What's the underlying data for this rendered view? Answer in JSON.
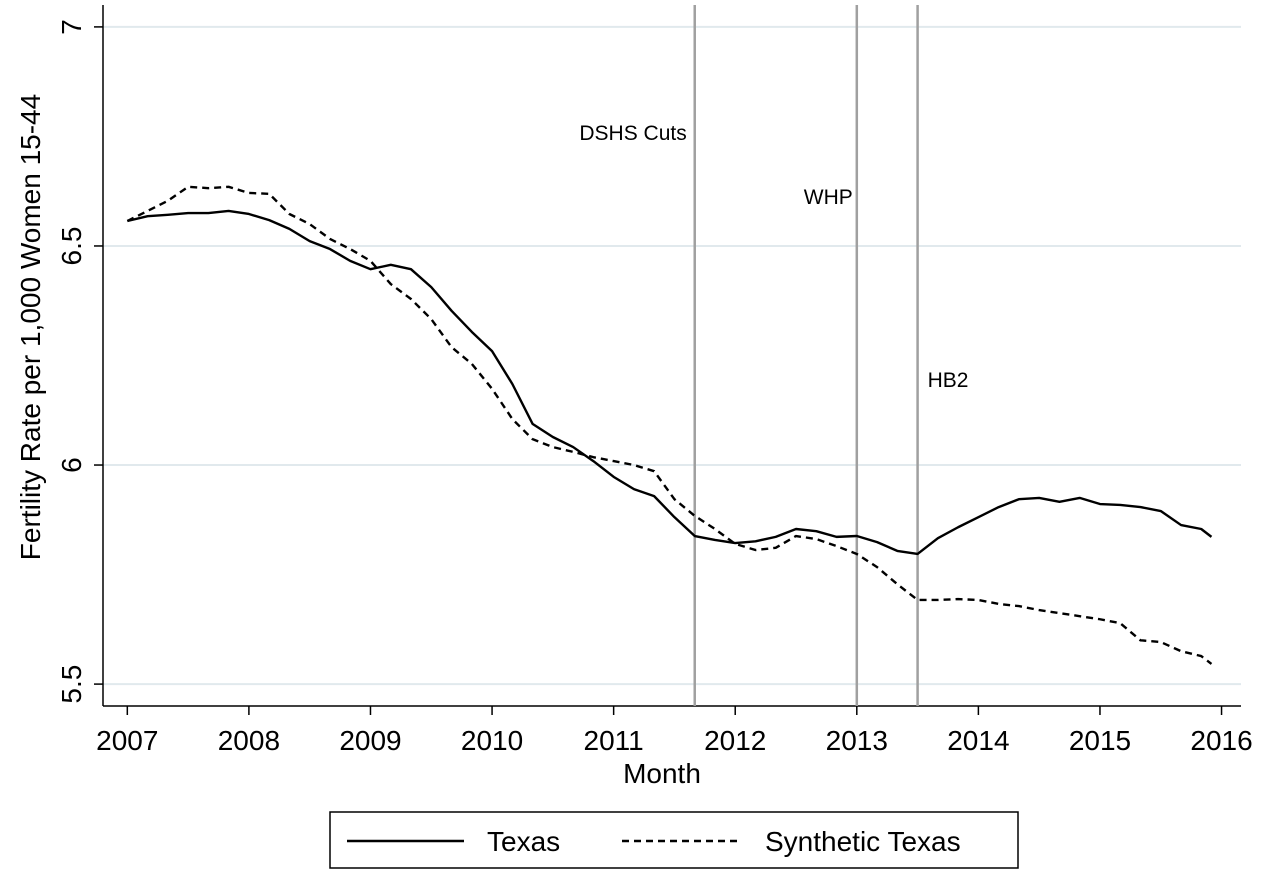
{
  "chart_data": {
    "type": "line",
    "xlabel": "Month",
    "ylabel": "Fertility Rate per 1,000 Women 15-44",
    "x": [
      2007,
      2007.167,
      2007.333,
      2007.5,
      2007.667,
      2007.833,
      2008,
      2008.167,
      2008.333,
      2008.5,
      2008.667,
      2008.833,
      2009,
      2009.167,
      2009.333,
      2009.5,
      2009.667,
      2009.833,
      2010,
      2010.167,
      2010.333,
      2010.5,
      2010.667,
      2010.833,
      2011,
      2011.167,
      2011.333,
      2011.5,
      2011.667,
      2011.833,
      2012,
      2012.167,
      2012.333,
      2012.5,
      2012.667,
      2012.833,
      2013,
      2013.167,
      2013.333,
      2013.5,
      2013.667,
      2013.833,
      2014,
      2014.167,
      2014.333,
      2014.5,
      2014.667,
      2014.833,
      2015,
      2015.167,
      2015.333,
      2015.5,
      2015.667,
      2015.833,
      2015.917
    ],
    "series": [
      {
        "name": "Texas",
        "color": "#000000",
        "dash": "solid",
        "values": [
          6.557,
          6.568,
          6.571,
          6.575,
          6.575,
          6.58,
          6.573,
          6.559,
          6.539,
          6.511,
          6.493,
          6.466,
          6.447,
          6.457,
          6.447,
          6.406,
          6.352,
          6.304,
          6.26,
          6.185,
          6.094,
          6.064,
          6.041,
          6.009,
          5.973,
          5.945,
          5.929,
          5.881,
          5.838,
          5.829,
          5.822,
          5.826,
          5.836,
          5.854,
          5.849,
          5.836,
          5.838,
          5.824,
          5.804,
          5.797,
          5.833,
          5.858,
          5.881,
          5.904,
          5.922,
          5.925,
          5.916,
          5.925,
          5.911,
          5.909,
          5.904,
          5.895,
          5.863,
          5.854,
          5.836
        ]
      },
      {
        "name": "Synthetic Texas",
        "color": "#000000",
        "dash": "dashed",
        "values": [
          6.557,
          6.58,
          6.603,
          6.635,
          6.632,
          6.635,
          6.621,
          6.619,
          6.573,
          6.55,
          6.516,
          6.493,
          6.466,
          6.413,
          6.379,
          6.333,
          6.269,
          6.231,
          6.174,
          6.105,
          6.059,
          6.041,
          6.03,
          6.018,
          6.009,
          6.0,
          5.986,
          5.922,
          5.884,
          5.854,
          5.82,
          5.806,
          5.811,
          5.838,
          5.831,
          5.815,
          5.797,
          5.767,
          5.728,
          5.692,
          5.692,
          5.694,
          5.692,
          5.683,
          5.678,
          5.669,
          5.662,
          5.655,
          5.648,
          5.639,
          5.6,
          5.596,
          5.575,
          5.564,
          5.546
        ]
      }
    ],
    "events": [
      {
        "x": 2011.667,
        "label": "DSHS Cuts"
      },
      {
        "x": 2013,
        "label": "WHP"
      },
      {
        "x": 2013.5,
        "label": "HB2"
      }
    ],
    "event_color": "#a0a0a0",
    "xlim": [
      2006.8,
      2016.16
    ],
    "ylim": [
      5.45,
      7.05
    ],
    "xticks": [
      2007,
      2008,
      2009,
      2010,
      2011,
      2012,
      2013,
      2014,
      2015,
      2016
    ],
    "yticks": [
      5.5,
      6,
      6.5,
      7
    ],
    "grid": true,
    "grid_color": "#e1e9ed",
    "legend": "bottom"
  }
}
